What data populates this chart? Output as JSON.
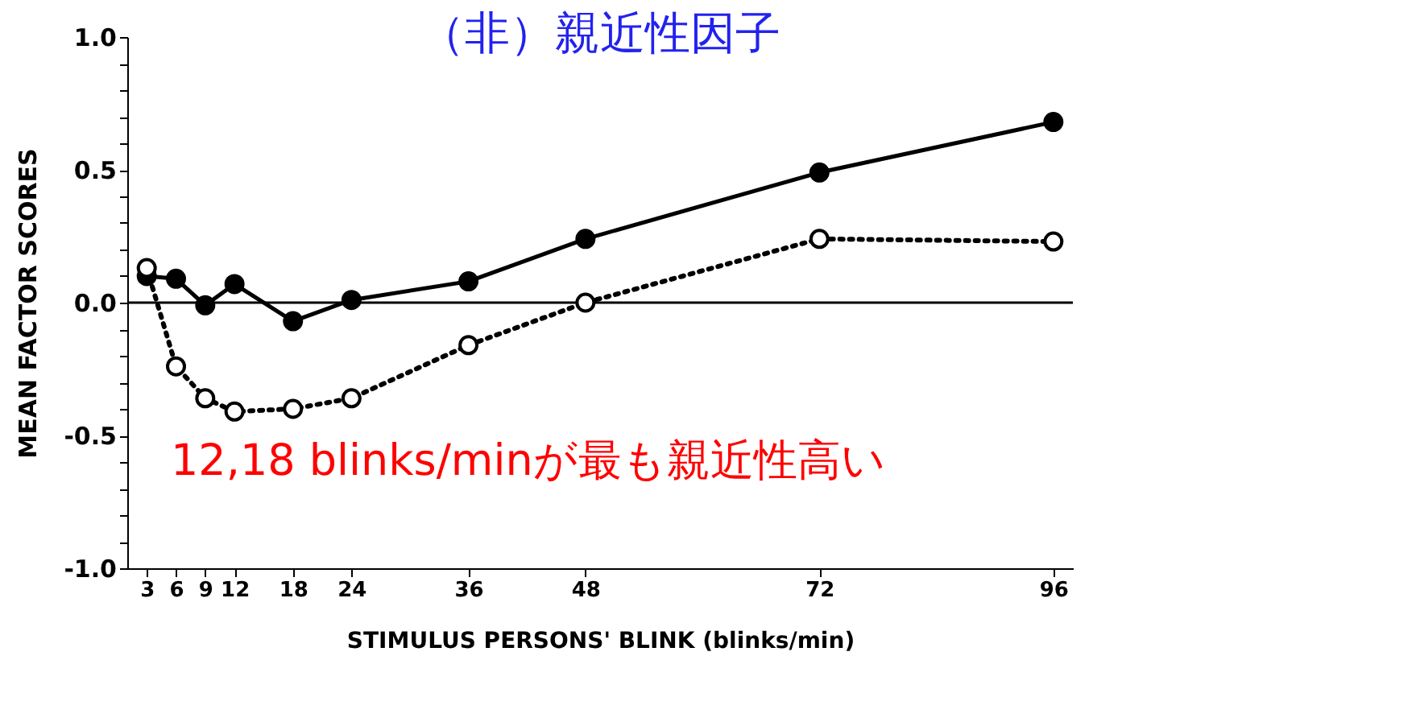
{
  "chart_data": {
    "type": "line",
    "title": "（非）親近性因子",
    "xlabel": "STIMULUS PERSONS' BLINK (blinks/min)",
    "ylabel": "MEAN FACTOR SCORES",
    "x": [
      3,
      6,
      9,
      12,
      18,
      24,
      36,
      48,
      72,
      96
    ],
    "series": [
      {
        "color": "#000000",
        "line_style": "solid",
        "marker": "circle",
        "values": [
          0.1,
          0.09,
          -0.01,
          0.07,
          -0.07,
          0.01,
          0.08,
          0.24,
          0.49,
          0.68
        ]
      },
      {
        "color": "#000000",
        "line_style": "dotted",
        "marker": "circle",
        "values": [
          0.13,
          -0.24,
          -0.36,
          -0.41,
          -0.4,
          -0.36,
          -0.16,
          0.0,
          0.24,
          0.23
        ]
      }
    ],
    "xlim": [
      1,
      98
    ],
    "xticks": [
      3,
      6,
      9,
      12,
      18,
      24,
      36,
      48,
      72,
      96
    ],
    "ylim": [
      -1.0,
      1.0
    ],
    "yticks": [
      {
        "value": -1.0,
        "label": "-1.0"
      },
      {
        "value": -0.9,
        "label": null
      },
      {
        "value": -0.8,
        "label": null
      },
      {
        "value": -0.7,
        "label": null
      },
      {
        "value": -0.6,
        "label": null
      },
      -0.5,
      {
        "value": -0.4,
        "label": null
      },
      {
        "value": -0.3,
        "label": null
      },
      {
        "value": -0.2,
        "label": null
      },
      {
        "value": -0.1,
        "label": null
      },
      {
        "value": 0.0,
        "label": "0.0"
      },
      {
        "value": 0.1,
        "label": null
      },
      {
        "value": 0.2,
        "label": null
      },
      {
        "value": 0.3,
        "label": null
      },
      {
        "value": 0.4,
        "label": null
      },
      0.5,
      {
        "value": 0.6,
        "label": null
      },
      {
        "value": 0.7,
        "label": null
      },
      {
        "value": 0.8,
        "label": null
      },
      {
        "value": 0.9,
        "label": null
      },
      {
        "value": 1.0,
        "label": "1.0"
      }
    ],
    "ref_lines": [
      {
        "axis": "y",
        "value": 0.0,
        "label": null,
        "color": "#000000",
        "line_style": "solid"
      }
    ],
    "annotations": [
      "12,18 blinks/minが最も親近性高い"
    ],
    "grid": false
  }
}
